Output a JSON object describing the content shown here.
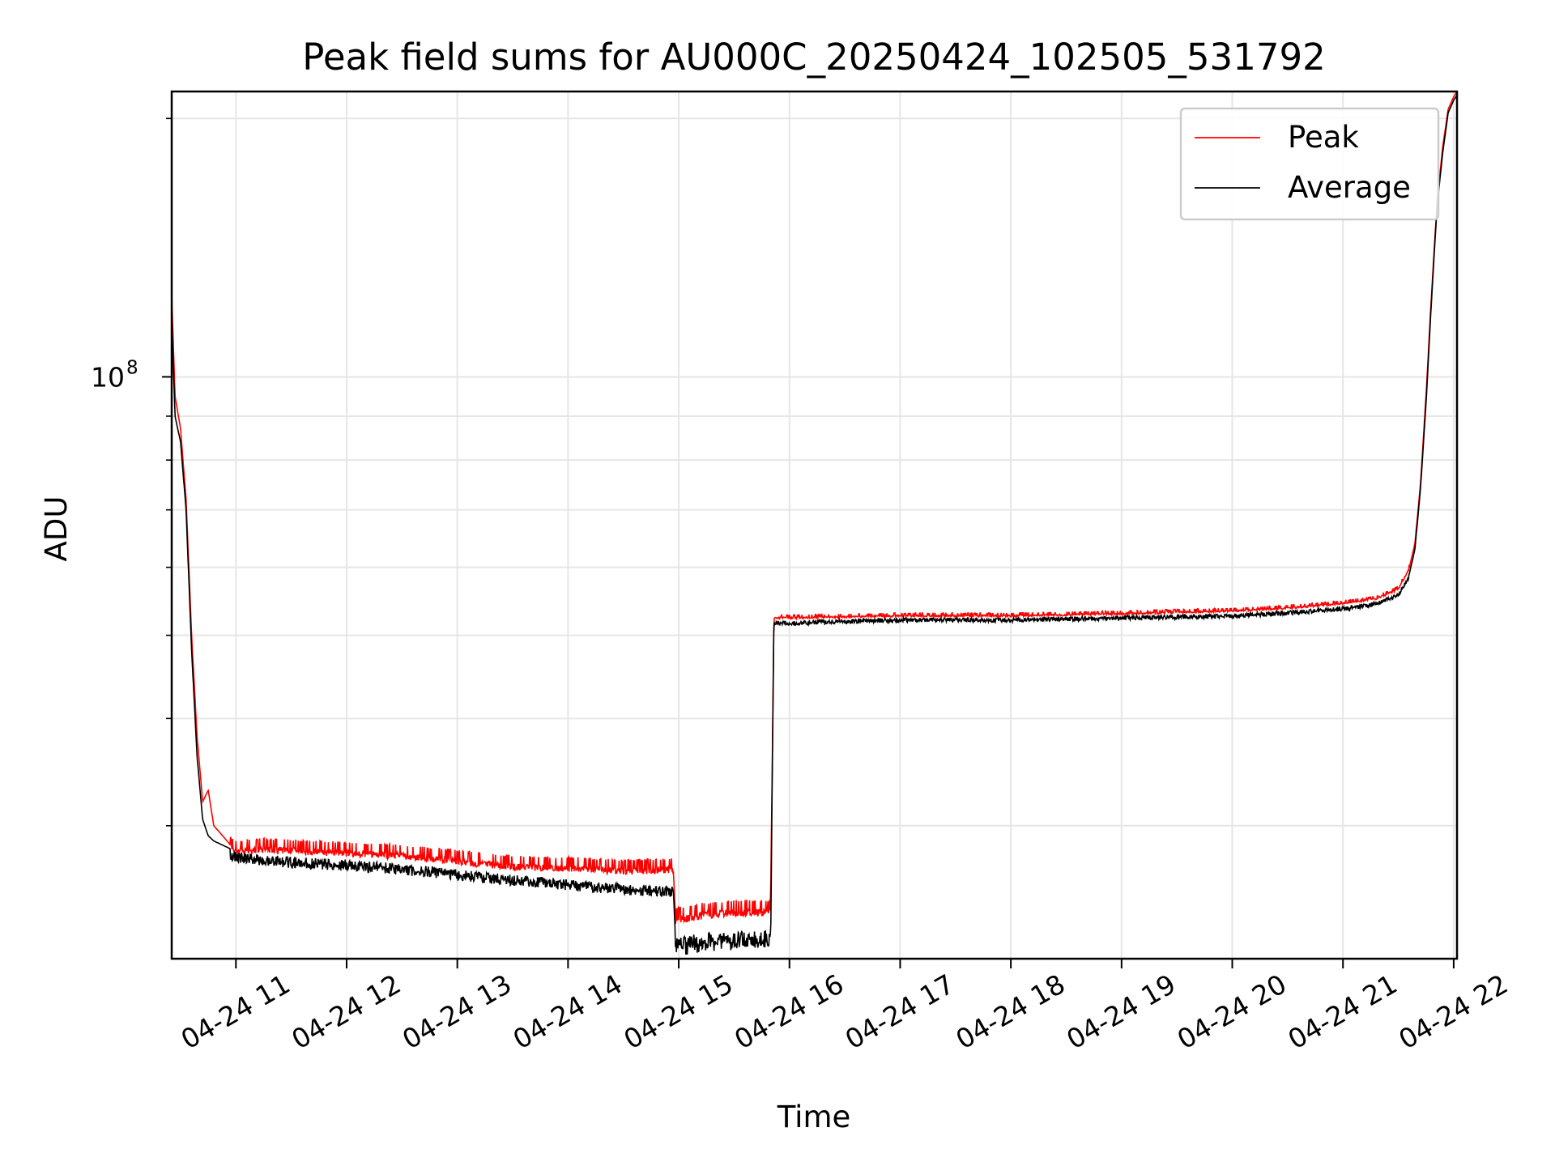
{
  "chart_data": {
    "type": "line",
    "title": "Peak field sums for AU000C_20250424_102505_531792",
    "xlabel": "Time",
    "ylabel": "ADU",
    "x_tick_labels": [
      "04-24 11",
      "04-24 12",
      "04-24 13",
      "04-24 14",
      "04-24 15",
      "04-24 16",
      "04-24 17",
      "04-24 18",
      "04-24 19",
      "04-24 20",
      "04-24 21",
      "04-24 22"
    ],
    "x_ticks_hours": [
      11,
      12,
      13,
      14,
      15,
      16,
      17,
      18,
      19,
      20,
      21,
      22
    ],
    "y_tick_label": {
      "base": "10",
      "exponent": "8"
    },
    "y_tick_value": 100000000,
    "y_scale": "log",
    "xlim_hours": [
      10.42,
      22.03
    ],
    "ylim": [
      21000000,
      215000000
    ],
    "grid": true,
    "legend_position": "top-right",
    "series": [
      {
        "name": "Peak",
        "color": "#ff0000",
        "x_hours": [
          10.42,
          10.45,
          10.5,
          10.55,
          10.6,
          10.65,
          10.7,
          10.75,
          10.8,
          10.85,
          10.9,
          10.95,
          11.0,
          11.1,
          11.25,
          11.5,
          12.0,
          12.5,
          13.0,
          13.5,
          14.0,
          14.5,
          14.95,
          14.97,
          15.2,
          15.5,
          15.83,
          15.86,
          16.0,
          17.0,
          18.0,
          19.0,
          20.0,
          20.5,
          21.0,
          21.3,
          21.5,
          21.6,
          21.65,
          21.7,
          21.75,
          21.8,
          21.85,
          21.9,
          21.95,
          22.0,
          22.03
        ],
        "values": [
          125000000,
          95000000,
          87000000,
          72000000,
          50000000,
          38000000,
          32000000,
          33000000,
          30000000,
          29500000,
          29000000,
          28500000,
          28200000,
          28300000,
          28400000,
          28300000,
          28100000,
          27900000,
          27500000,
          27100000,
          27000000,
          26800000,
          26900000,
          23500000,
          23800000,
          24000000,
          24000000,
          52500000,
          52500000,
          52800000,
          52800000,
          53100000,
          53500000,
          53900000,
          54600000,
          55300000,
          56700000,
          60000000,
          64000000,
          75000000,
          95000000,
          125000000,
          160000000,
          185000000,
          205000000,
          212000000,
          215000000
        ]
      },
      {
        "name": "Average",
        "color": "#000000",
        "x_hours": [
          10.42,
          10.45,
          10.5,
          10.55,
          10.6,
          10.65,
          10.7,
          10.75,
          10.8,
          10.85,
          10.9,
          10.95,
          11.0,
          11.1,
          11.25,
          11.5,
          12.0,
          12.5,
          13.0,
          13.5,
          14.0,
          14.5,
          14.95,
          14.97,
          15.2,
          15.5,
          15.83,
          15.86,
          16.0,
          17.0,
          18.0,
          19.0,
          20.0,
          20.5,
          21.0,
          21.3,
          21.5,
          21.6,
          21.65,
          21.7,
          21.75,
          21.8,
          21.85,
          21.9,
          21.95,
          22.0,
          22.03
        ],
        "values": [
          118000000,
          90000000,
          84000000,
          70000000,
          48000000,
          36000000,
          30500000,
          29200000,
          28800000,
          28600000,
          28400000,
          28200000,
          28000000,
          27900000,
          27800000,
          27600000,
          27400000,
          27100000,
          26700000,
          26300000,
          26000000,
          25700000,
          25500000,
          22200000,
          22500000,
          22600000,
          22700000,
          52000000,
          52000000,
          52400000,
          52400000,
          52700000,
          53000000,
          53400000,
          54000000,
          54700000,
          56000000,
          59000000,
          63000000,
          74000000,
          93000000,
          123000000,
          158000000,
          182000000,
          203000000,
          210000000,
          213000000
        ]
      }
    ]
  }
}
